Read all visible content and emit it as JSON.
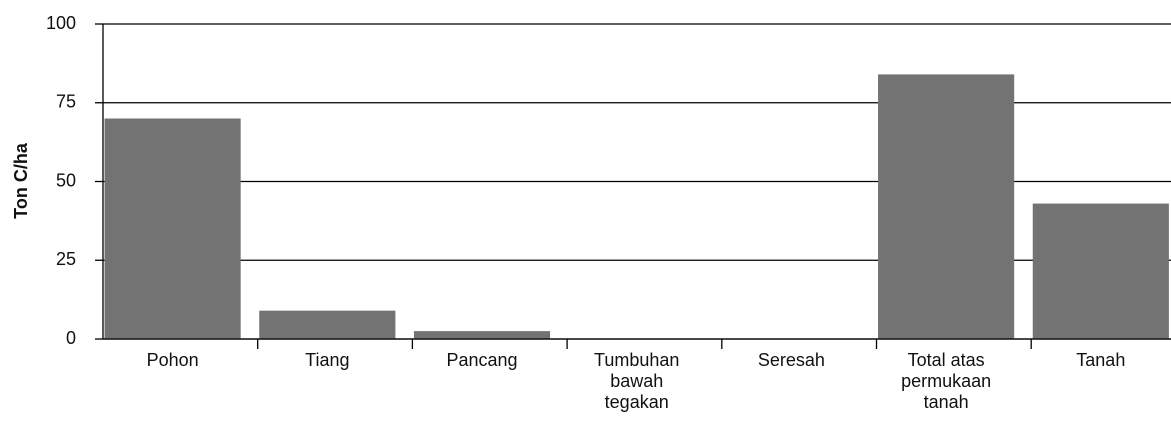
{
  "chart_data": {
    "type": "bar",
    "y_label": "Ton C/ha",
    "categories": [
      "Pohon",
      "Tiang",
      "Pancang",
      "Tumbuhan bawah tegakan",
      "Seresah",
      "Total atas permukaan tanah",
      "Tanah"
    ],
    "values": [
      70,
      9,
      2.5,
      0,
      0,
      84,
      43
    ],
    "color": "#737373",
    "ylim": [
      0,
      100
    ],
    "yticks": [
      0,
      25,
      50,
      75,
      100
    ],
    "grid": true
  }
}
